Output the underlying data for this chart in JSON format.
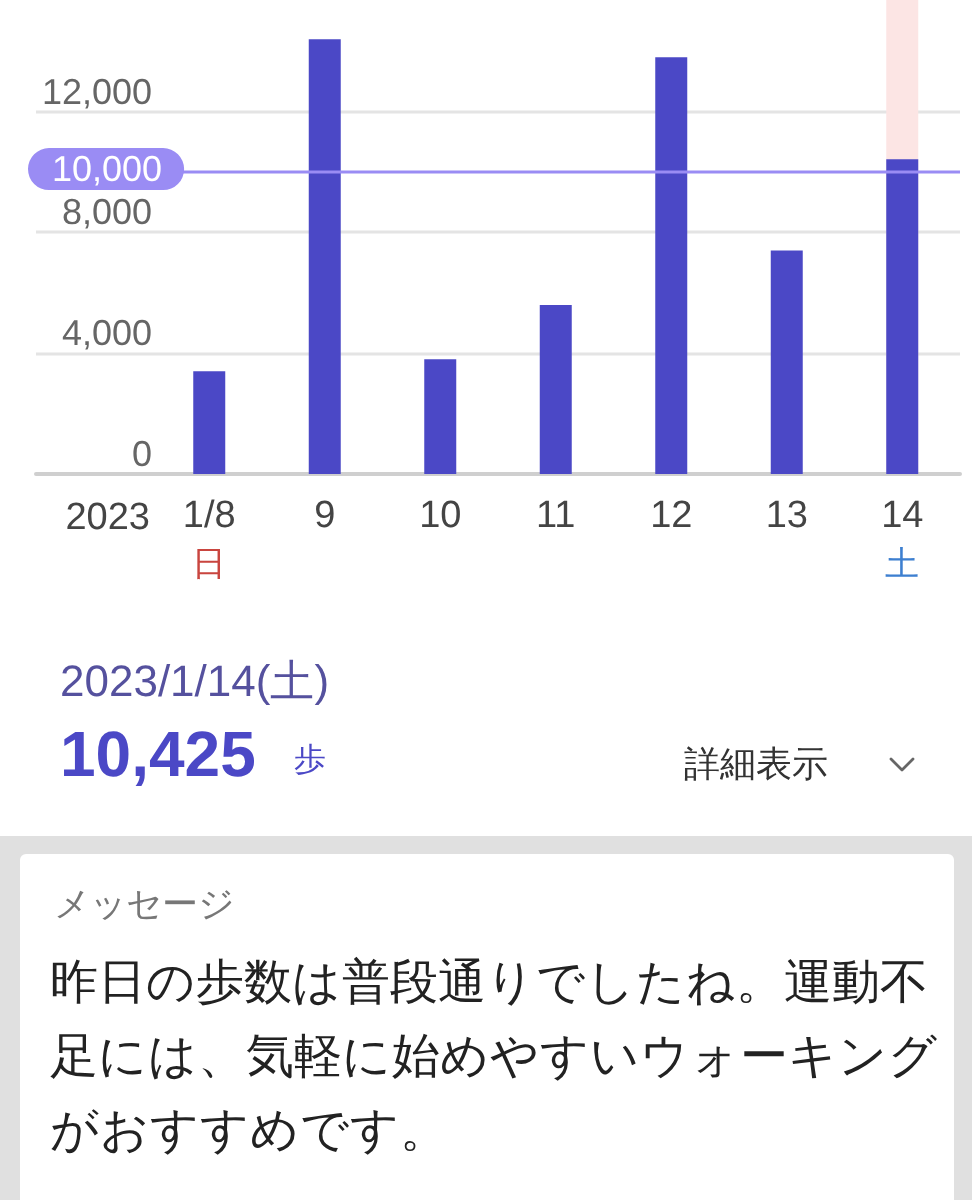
{
  "chart_data": {
    "type": "bar",
    "categories": [
      "1/8\n日",
      "9",
      "10",
      "11",
      "12",
      "13",
      "14\n土"
    ],
    "values": [
      3400,
      14400,
      3800,
      5600,
      13800,
      7400,
      10425
    ],
    "color": "#4b48c6",
    "xlabel": "2023",
    "ylim": [
      0,
      15700
    ],
    "yticks": [
      0,
      {
        "value": 4000,
        "label": "4,000"
      },
      {
        "value": 8000,
        "label": "8,000"
      },
      {
        "value": 12000,
        "label": "12,000"
      }
    ],
    "grid": "y",
    "ref_lines": [
      {
        "axis": "y",
        "value": 10000,
        "label": "10,000",
        "color": "#9a8cf4"
      }
    ],
    "bands": [
      {
        "axis": "x",
        "from": "14\n土",
        "to": "14\n土",
        "color": "#fce5e4"
      }
    ],
    "annotations": [
      "2023/1/14(土)",
      "10,425",
      "歩",
      "詳細表示",
      "メッセージ",
      "昨日の歩数は普段通りでしたね。運動不足には、気軽に始めやすいウォーキングがおすすめです。"
    ]
  }
}
